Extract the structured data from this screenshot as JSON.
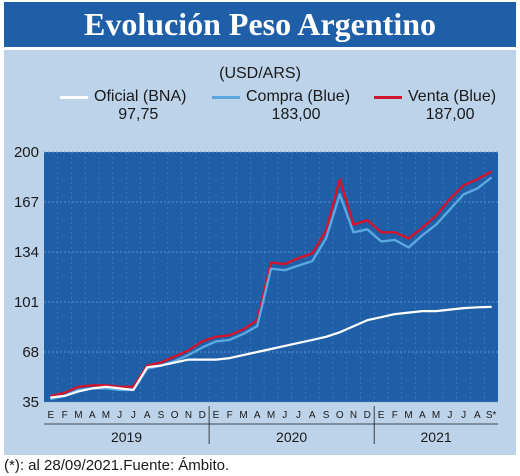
{
  "title": "Evolución Peso Argentino",
  "unit": "(USD/ARS)",
  "legend": {
    "oficial": {
      "label": "Oficial (BNA)",
      "value": "97,75"
    },
    "compra": {
      "label": "Compra (Blue)",
      "value": "183,00"
    },
    "venta": {
      "label": "Venta (Blue)",
      "value": "187,00"
    }
  },
  "footnote": "(*): al 28/09/2021.Fuente: Ámbito.",
  "colors": {
    "oficial": "#ffffff",
    "compra": "#5aa8e0",
    "venta": "#d3142c",
    "panel": "#bcd3ea",
    "title_bg": "#1f5fa8"
  },
  "chart_data": {
    "type": "line",
    "title": "Evolución Peso Argentino",
    "ylabel": "(USD/ARS)",
    "ylim": [
      35,
      200
    ],
    "yticks": [
      35,
      68,
      101,
      134,
      167,
      200
    ],
    "xlim": [
      "2019-01",
      "2021-09"
    ],
    "x_month_labels": [
      "E",
      "F",
      "M",
      "A",
      "M",
      "J",
      "J",
      "A",
      "S",
      "O",
      "N",
      "D",
      "E",
      "F",
      "M",
      "A",
      "M",
      "J",
      "J",
      "A",
      "S",
      "O",
      "N",
      "D",
      "E",
      "F",
      "M",
      "A",
      "M",
      "J",
      "J",
      "A",
      "S*"
    ],
    "year_labels": [
      {
        "label": "2019",
        "start": "2019-01",
        "end": "2019-12"
      },
      {
        "label": "2020",
        "start": "2020-01",
        "end": "2020-12"
      },
      {
        "label": "2021",
        "start": "2021-01",
        "end": "2021-09"
      }
    ],
    "grid": true,
    "x": [
      "2019-01",
      "2019-02",
      "2019-03",
      "2019-04",
      "2019-05",
      "2019-06",
      "2019-07",
      "2019-08",
      "2019-09",
      "2019-10",
      "2019-11",
      "2019-12",
      "2020-01",
      "2020-02",
      "2020-03",
      "2020-04",
      "2020-05",
      "2020-06",
      "2020-07",
      "2020-08",
      "2020-09",
      "2020-10",
      "2020-11",
      "2020-12",
      "2021-01",
      "2021-02",
      "2021-03",
      "2021-04",
      "2021-05",
      "2021-06",
      "2021-07",
      "2021-08",
      "2021-09"
    ],
    "series": [
      {
        "name": "Oficial (BNA)",
        "values": [
          38,
          39,
          42,
          44,
          45,
          44,
          43,
          58,
          59,
          61,
          63,
          63,
          63,
          64,
          66,
          68,
          70,
          72,
          74,
          76,
          78,
          81,
          85,
          89,
          91,
          93,
          94,
          95,
          95,
          96,
          97,
          97.5,
          97.75
        ]
      },
      {
        "name": "Compra (Blue)",
        "values": [
          37,
          39,
          43,
          44,
          44,
          43,
          43,
          57,
          59,
          62,
          66,
          71,
          75,
          76,
          80,
          85,
          123,
          122,
          125,
          128,
          143,
          172,
          147,
          149,
          141,
          142,
          137,
          145,
          152,
          162,
          172,
          176,
          183
        ]
      },
      {
        "name": "Venta (Blue)",
        "values": [
          39,
          41,
          45,
          46,
          46,
          45,
          45,
          59,
          61,
          65,
          69,
          75,
          78,
          79,
          83,
          89,
          127,
          126,
          130,
          133,
          148,
          182,
          152,
          155,
          147,
          147,
          143,
          150,
          158,
          169,
          178,
          182,
          187
        ]
      }
    ]
  }
}
